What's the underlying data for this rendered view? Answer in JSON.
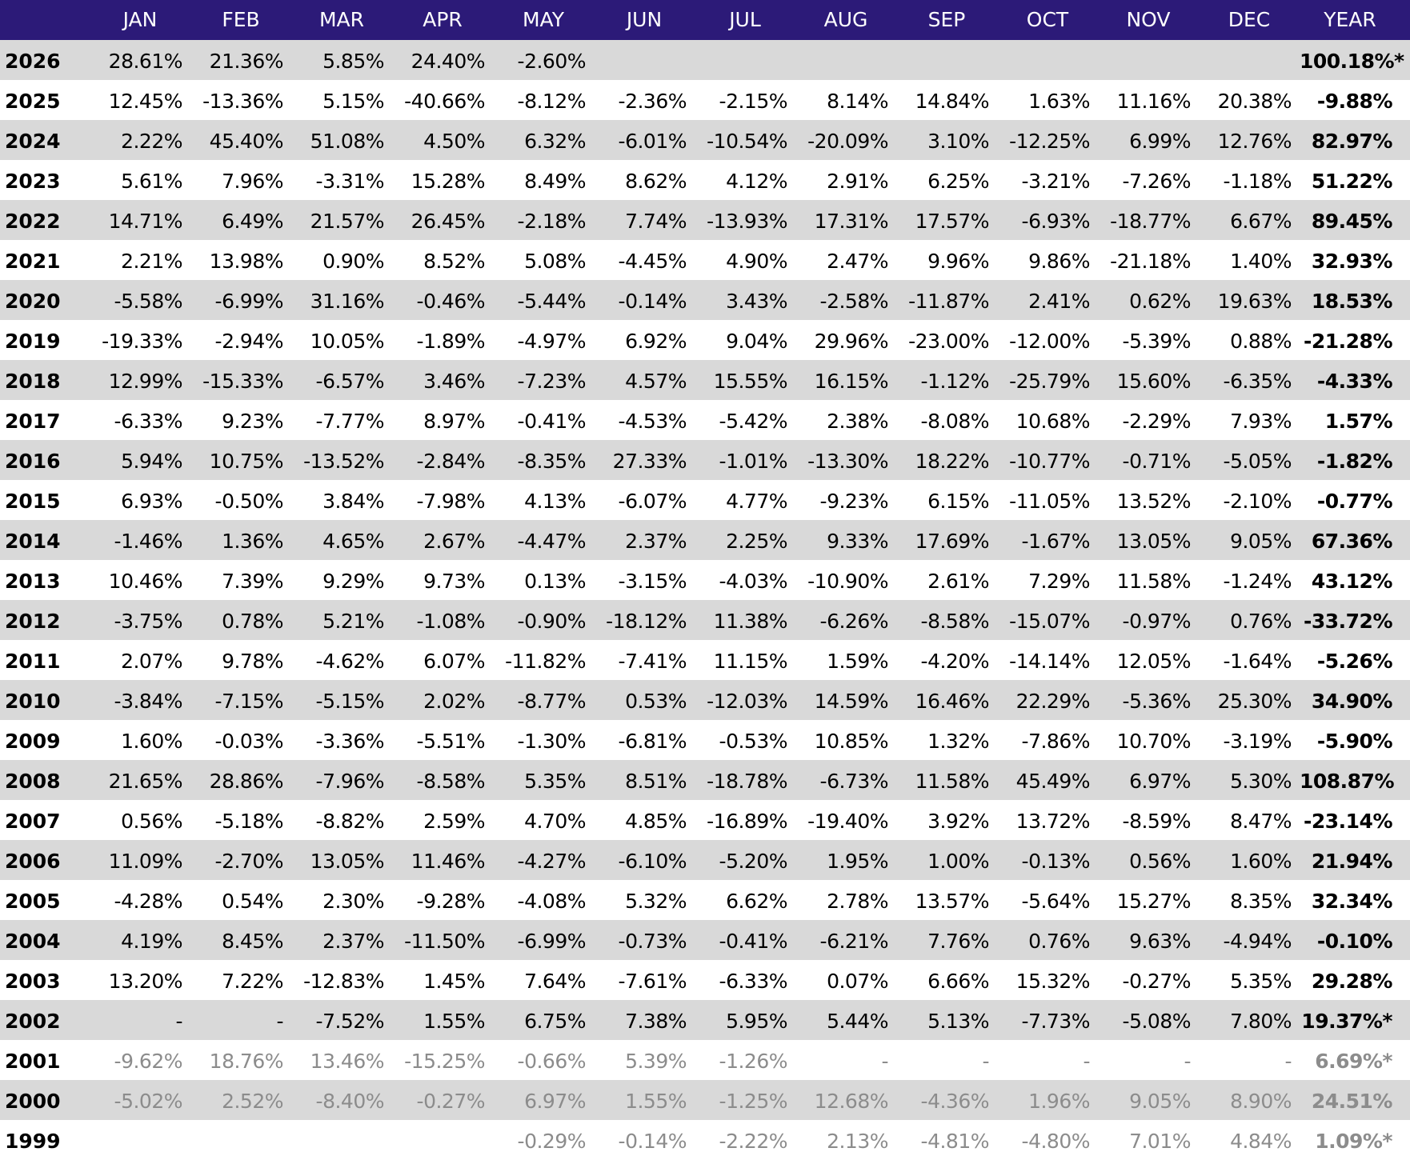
{
  "table": {
    "columns": [
      "JAN",
      "FEB",
      "MAR",
      "APR",
      "MAY",
      "JUN",
      "JUL",
      "AUG",
      "SEP",
      "OCT",
      "NOV",
      "DEC",
      "YEAR"
    ],
    "rows": [
      {
        "label": "2026",
        "cells": [
          "28.61%",
          "21.36%",
          "5.85%",
          "24.40%",
          "-2.60%",
          null,
          null,
          null,
          null,
          null,
          null,
          null,
          "100.18%*"
        ]
      },
      {
        "label": "2025",
        "cells": [
          "12.45%",
          "-13.36%",
          "5.15%",
          "-40.66%",
          "-8.12%",
          "-2.36%",
          "-2.15%",
          "8.14%",
          "14.84%",
          "1.63%",
          "11.16%",
          "20.38%",
          "-9.88%"
        ]
      },
      {
        "label": "2024",
        "cells": [
          "2.22%",
          "45.40%",
          "51.08%",
          "4.50%",
          "6.32%",
          "-6.01%",
          "-10.54%",
          "-20.09%",
          "3.10%",
          "-12.25%",
          "6.99%",
          "12.76%",
          "82.97%"
        ]
      },
      {
        "label": "2023",
        "cells": [
          "5.61%",
          "7.96%",
          "-3.31%",
          "15.28%",
          "8.49%",
          "8.62%",
          "4.12%",
          "2.91%",
          "6.25%",
          "-3.21%",
          "-7.26%",
          "-1.18%",
          "51.22%"
        ]
      },
      {
        "label": "2022",
        "cells": [
          "14.71%",
          "6.49%",
          "21.57%",
          "26.45%",
          "-2.18%",
          "7.74%",
          "-13.93%",
          "17.31%",
          "17.57%",
          "-6.93%",
          "-18.77%",
          "6.67%",
          "89.45%"
        ]
      },
      {
        "label": "2021",
        "cells": [
          "2.21%",
          "13.98%",
          "0.90%",
          "8.52%",
          "5.08%",
          "-4.45%",
          "4.90%",
          "2.47%",
          "9.96%",
          "9.86%",
          "-21.18%",
          "1.40%",
          "32.93%"
        ]
      },
      {
        "label": "2020",
        "cells": [
          "-5.58%",
          "-6.99%",
          "31.16%",
          "-0.46%",
          "-5.44%",
          "-0.14%",
          "3.43%",
          "-2.58%",
          "-11.87%",
          "2.41%",
          "0.62%",
          "19.63%",
          "18.53%"
        ]
      },
      {
        "label": "2019",
        "cells": [
          "-19.33%",
          "-2.94%",
          "10.05%",
          "-1.89%",
          "-4.97%",
          "6.92%",
          "9.04%",
          "29.96%",
          "-23.00%",
          "-12.00%",
          "-5.39%",
          "0.88%",
          "-21.28%"
        ]
      },
      {
        "label": "2018",
        "cells": [
          "12.99%",
          "-15.33%",
          "-6.57%",
          "3.46%",
          "-7.23%",
          "4.57%",
          "15.55%",
          "16.15%",
          "-1.12%",
          "-25.79%",
          "15.60%",
          "-6.35%",
          "-4.33%"
        ]
      },
      {
        "label": "2017",
        "cells": [
          "-6.33%",
          "9.23%",
          "-7.77%",
          "8.97%",
          "-0.41%",
          "-4.53%",
          "-5.42%",
          "2.38%",
          "-8.08%",
          "10.68%",
          "-2.29%",
          "7.93%",
          "1.57%"
        ]
      },
      {
        "label": "2016",
        "cells": [
          "5.94%",
          "10.75%",
          "-13.52%",
          "-2.84%",
          "-8.35%",
          "27.33%",
          "-1.01%",
          "-13.30%",
          "18.22%",
          "-10.77%",
          "-0.71%",
          "-5.05%",
          "-1.82%"
        ]
      },
      {
        "label": "2015",
        "cells": [
          "6.93%",
          "-0.50%",
          "3.84%",
          "-7.98%",
          "4.13%",
          "-6.07%",
          "4.77%",
          "-9.23%",
          "6.15%",
          "-11.05%",
          "13.52%",
          "-2.10%",
          "-0.77%"
        ]
      },
      {
        "label": "2014",
        "cells": [
          "-1.46%",
          "1.36%",
          "4.65%",
          "2.67%",
          "-4.47%",
          "2.37%",
          "2.25%",
          "9.33%",
          "17.69%",
          "-1.67%",
          "13.05%",
          "9.05%",
          "67.36%"
        ]
      },
      {
        "label": "2013",
        "cells": [
          "10.46%",
          "7.39%",
          "9.29%",
          "9.73%",
          "0.13%",
          "-3.15%",
          "-4.03%",
          "-10.90%",
          "2.61%",
          "7.29%",
          "11.58%",
          "-1.24%",
          "43.12%"
        ]
      },
      {
        "label": "2012",
        "cells": [
          "-3.75%",
          "0.78%",
          "5.21%",
          "-1.08%",
          "-0.90%",
          "-18.12%",
          "11.38%",
          "-6.26%",
          "-8.58%",
          "-15.07%",
          "-0.97%",
          "0.76%",
          "-33.72%"
        ]
      },
      {
        "label": "2011",
        "cells": [
          "2.07%",
          "9.78%",
          "-4.62%",
          "6.07%",
          "-11.82%",
          "-7.41%",
          "11.15%",
          "1.59%",
          "-4.20%",
          "-14.14%",
          "12.05%",
          "-1.64%",
          "-5.26%"
        ]
      },
      {
        "label": "2010",
        "cells": [
          "-3.84%",
          "-7.15%",
          "-5.15%",
          "2.02%",
          "-8.77%",
          "0.53%",
          "-12.03%",
          "14.59%",
          "16.46%",
          "22.29%",
          "-5.36%",
          "25.30%",
          "34.90%"
        ]
      },
      {
        "label": "2009",
        "cells": [
          "1.60%",
          "-0.03%",
          "-3.36%",
          "-5.51%",
          "-1.30%",
          "-6.81%",
          "-0.53%",
          "10.85%",
          "1.32%",
          "-7.86%",
          "10.70%",
          "-3.19%",
          "-5.90%"
        ]
      },
      {
        "label": "2008",
        "cells": [
          "21.65%",
          "28.86%",
          "-7.96%",
          "-8.58%",
          "5.35%",
          "8.51%",
          "-18.78%",
          "-6.73%",
          "11.58%",
          "45.49%",
          "6.97%",
          "5.30%",
          "108.87%"
        ]
      },
      {
        "label": "2007",
        "cells": [
          "0.56%",
          "-5.18%",
          "-8.82%",
          "2.59%",
          "4.70%",
          "4.85%",
          "-16.89%",
          "-19.40%",
          "3.92%",
          "13.72%",
          "-8.59%",
          "8.47%",
          "-23.14%"
        ]
      },
      {
        "label": "2006",
        "cells": [
          "11.09%",
          "-2.70%",
          "13.05%",
          "11.46%",
          "-4.27%",
          "-6.10%",
          "-5.20%",
          "1.95%",
          "1.00%",
          "-0.13%",
          "0.56%",
          "1.60%",
          "21.94%"
        ]
      },
      {
        "label": "2005",
        "cells": [
          "-4.28%",
          "0.54%",
          "2.30%",
          "-9.28%",
          "-4.08%",
          "5.32%",
          "6.62%",
          "2.78%",
          "13.57%",
          "-5.64%",
          "15.27%",
          "8.35%",
          "32.34%"
        ]
      },
      {
        "label": "2004",
        "cells": [
          "4.19%",
          "8.45%",
          "2.37%",
          "-11.50%",
          "-6.99%",
          "-0.73%",
          "-0.41%",
          "-6.21%",
          "7.76%",
          "0.76%",
          "9.63%",
          "-4.94%",
          "-0.10%"
        ]
      },
      {
        "label": "2003",
        "cells": [
          "13.20%",
          "7.22%",
          "-12.83%",
          "1.45%",
          "7.64%",
          "-7.61%",
          "-6.33%",
          "0.07%",
          "6.66%",
          "15.32%",
          "-0.27%",
          "5.35%",
          "29.28%"
        ]
      },
      {
        "label": "2002",
        "cells": [
          "-",
          "-",
          "-7.52%",
          "1.55%",
          "6.75%",
          "7.38%",
          "5.95%",
          "5.44%",
          "5.13%",
          "-7.73%",
          "-5.08%",
          "7.80%",
          "19.37%*"
        ]
      },
      {
        "label": "2001",
        "muted": true,
        "cells": [
          "-9.62%",
          "18.76%",
          "13.46%",
          "-15.25%",
          "-0.66%",
          "5.39%",
          "-1.26%",
          "-",
          "-",
          "-",
          "-",
          "-",
          "6.69%*"
        ]
      },
      {
        "label": "2000",
        "muted": true,
        "cells": [
          "-5.02%",
          "2.52%",
          "-8.40%",
          "-0.27%",
          "6.97%",
          "1.55%",
          "-1.25%",
          "12.68%",
          "-4.36%",
          "1.96%",
          "9.05%",
          "8.90%",
          "24.51%"
        ]
      },
      {
        "label": "1999",
        "muted": true,
        "cells": [
          null,
          null,
          null,
          null,
          "-0.29%",
          "-0.14%",
          "-2.22%",
          "2.13%",
          "-4.81%",
          "-4.80%",
          "7.01%",
          "4.84%",
          "1.09%*"
        ]
      }
    ]
  }
}
